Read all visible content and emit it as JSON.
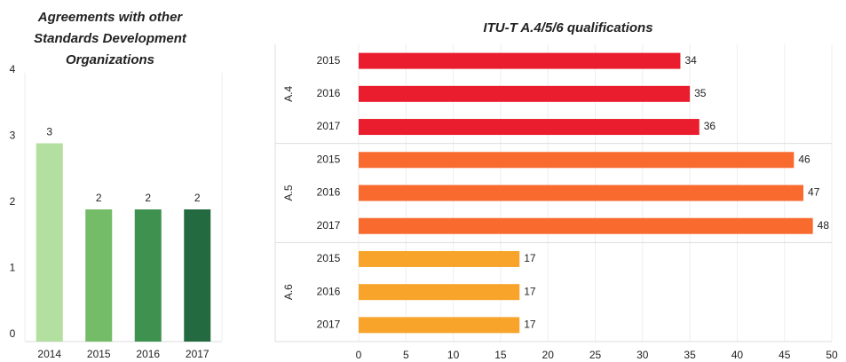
{
  "chart_data": [
    {
      "type": "bar",
      "title": "Agreements with other Standards Development Organizations",
      "categories": [
        "2014",
        "2015",
        "2016",
        "2017"
      ],
      "values": [
        3,
        2,
        2,
        2
      ],
      "colors": [
        "#b3dfa1",
        "#74bc68",
        "#3f9150",
        "#246a40"
      ],
      "ylim": [
        0,
        4
      ],
      "yticks": [
        0,
        1,
        2,
        3,
        4
      ]
    },
    {
      "type": "hbar",
      "title": "ITU-T A.4/5/6 qualifications",
      "groups": [
        {
          "name": "A.4",
          "color": "#e91d2d",
          "categories": [
            "2015",
            "2016",
            "2017"
          ],
          "values": [
            34,
            35,
            36
          ]
        },
        {
          "name": "A.5",
          "color": "#f96a2f",
          "categories": [
            "2015",
            "2016",
            "2017"
          ],
          "values": [
            46,
            47,
            48
          ]
        },
        {
          "name": "A.6",
          "color": "#f8a42b",
          "categories": [
            "2015",
            "2016",
            "2017"
          ],
          "values": [
            17,
            17,
            17
          ]
        }
      ],
      "xlim": [
        0,
        50
      ],
      "xticks": [
        0,
        5,
        10,
        15,
        20,
        25,
        30,
        35,
        40,
        45,
        50
      ]
    }
  ]
}
